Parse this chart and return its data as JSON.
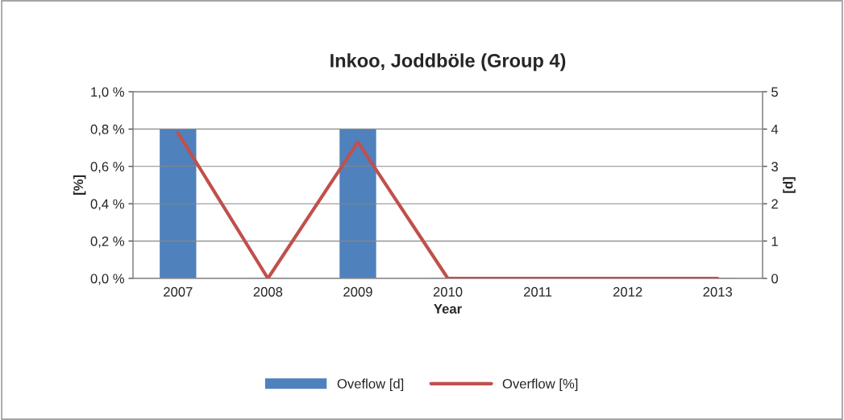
{
  "chart_data": {
    "type": "bar",
    "title": "Inkoo, Joddböle (Group 4)",
    "xlabel": "Year",
    "ylabel": "[%]",
    "y2label": "[d]",
    "categories": [
      "2007",
      "2008",
      "2009",
      "2010",
      "2011",
      "2012",
      "2013"
    ],
    "series": [
      {
        "name": "Oveflow [d]",
        "axis": "y2",
        "color": "#4f81bd",
        "values": [
          4,
          0,
          4,
          0,
          0,
          0,
          0
        ]
      },
      {
        "name": "Overflow [%]",
        "type": "line",
        "color": "#c0504d",
        "values": [
          0.78,
          0,
          0.73,
          0,
          0,
          0,
          0
        ]
      }
    ],
    "ylim": [
      0,
      1.0
    ],
    "yticks": [
      {
        "value": 0,
        "label": "0,0 %"
      },
      {
        "value": 0.2,
        "label": "0,2 %"
      },
      {
        "value": 0.4,
        "label": "0,4 %"
      },
      {
        "value": 0.6,
        "label": "0,6 %"
      },
      {
        "value": 0.8,
        "label": "0,8 %"
      },
      {
        "value": 1.0,
        "label": "1,0 %"
      }
    ],
    "y2lim": [
      0,
      5
    ],
    "y2ticks": [
      0,
      1,
      2,
      3,
      4,
      5
    ],
    "grid": "y",
    "legend": "bottom"
  }
}
